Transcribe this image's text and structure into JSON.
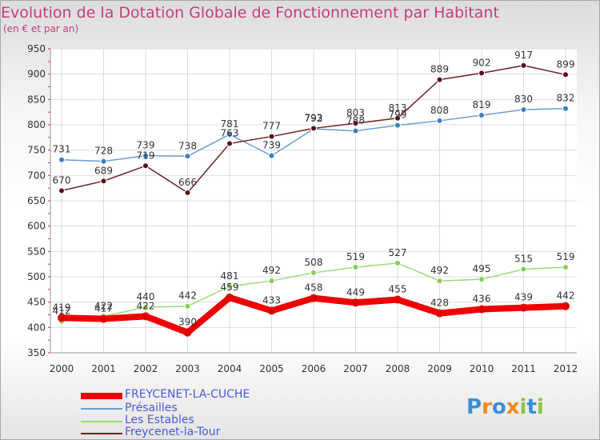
{
  "chart_data": {
    "type": "line",
    "title": "Evolution de la Dotation Globale de Fonctionnement par Habitant",
    "subtitle": "(en € et par an)",
    "xlabel": "",
    "ylabel": "",
    "ylim": [
      350,
      950
    ],
    "yticks": [
      350,
      400,
      450,
      500,
      550,
      600,
      650,
      700,
      750,
      800,
      850,
      900,
      950
    ],
    "categories": [
      "2000",
      "2001",
      "2002",
      "2003",
      "2004",
      "2005",
      "2006",
      "2007",
      "2008",
      "2009",
      "2010",
      "2011",
      "2012"
    ],
    "grid": true,
    "legend_position": "bottom-left",
    "series": [
      {
        "name": "FREYCENET-LA-CUCHE",
        "color": "#ee0000",
        "values": [
          419,
          417,
          422,
          390,
          459,
          433,
          458,
          449,
          455,
          428,
          436,
          439,
          442
        ]
      },
      {
        "name": "Présailles",
        "color": "#6a9fd0",
        "values": [
          731,
          728,
          739,
          738,
          781,
          739,
          792,
          788,
          799,
          808,
          819,
          830,
          832
        ]
      },
      {
        "name": "Les Estables",
        "color": "#99dd77",
        "values": [
          412,
          422,
          440,
          442,
          481,
          492,
          508,
          519,
          527,
          492,
          495,
          515,
          519
        ]
      },
      {
        "name": "Freycenet-la-Tour",
        "color": "#6b1f25",
        "values": [
          670,
          689,
          719,
          666,
          763,
          777,
          793,
          803,
          813,
          889,
          902,
          917,
          899
        ]
      }
    ]
  },
  "logo": {
    "letters": [
      {
        "char": "P",
        "color": "#3a8ed8"
      },
      {
        "char": "r",
        "color": "#f08a1c"
      },
      {
        "char": "o",
        "color": "#3a8ed8"
      },
      {
        "char": "x",
        "color": "#f08a1c"
      },
      {
        "char": "i",
        "color": "#8cc63f"
      },
      {
        "char": "t",
        "color": "#3a8ed8"
      },
      {
        "char": "i",
        "color": "#8cc63f"
      }
    ]
  }
}
